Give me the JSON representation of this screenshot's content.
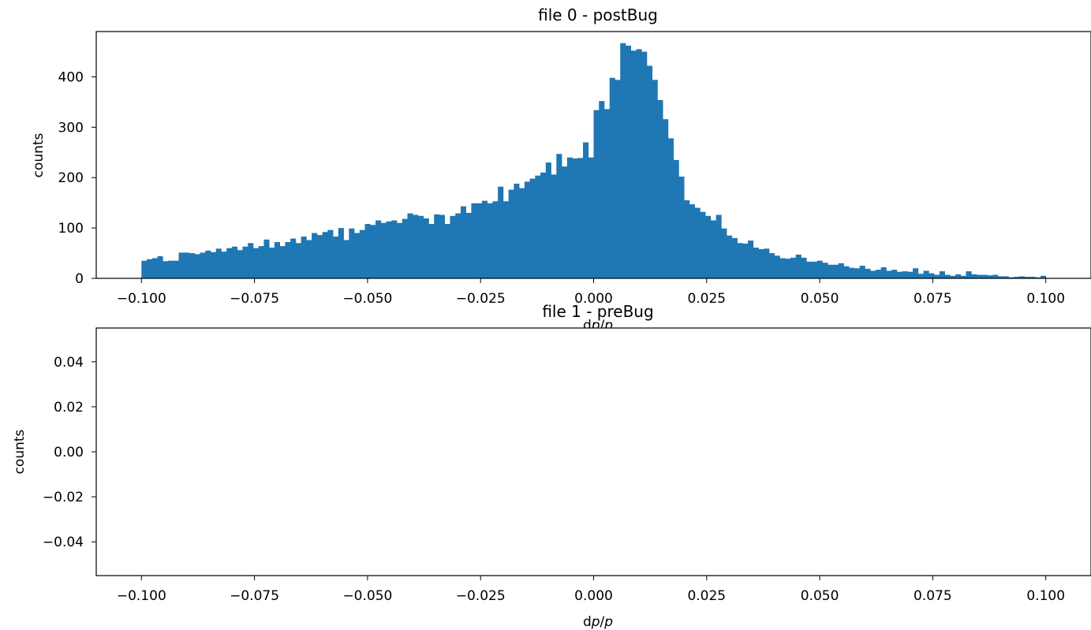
{
  "chart_data": [
    {
      "type": "bar",
      "title": "file 0 - postBug",
      "xlabel_parts": [
        "d",
        "p",
        "/",
        "p"
      ],
      "ylabel": "counts",
      "xlim": [
        -0.11,
        0.11
      ],
      "ylim": [
        0,
        490
      ],
      "xticks": [
        -0.1,
        -0.075,
        -0.05,
        -0.025,
        0.0,
        0.025,
        0.05,
        0.075,
        0.1
      ],
      "xtick_labels": [
        "−0.100",
        "−0.075",
        "−0.050",
        "−0.025",
        "0.000",
        "0.025",
        "0.050",
        "0.075",
        "0.100"
      ],
      "yticks": [
        0,
        100,
        200,
        300,
        400
      ],
      "ytick_labels": [
        "0",
        "100",
        "200",
        "300",
        "400"
      ],
      "bin_range": [
        -0.1,
        0.1
      ],
      "bin_count": 170,
      "bar_color": "#1f77b4",
      "values": [
        35,
        38,
        40,
        44,
        34,
        35,
        35,
        51,
        51,
        50,
        48,
        51,
        55,
        52,
        59,
        53,
        60,
        63,
        56,
        63,
        70,
        60,
        64,
        77,
        61,
        72,
        64,
        72,
        79,
        70,
        83,
        76,
        90,
        86,
        92,
        96,
        83,
        100,
        76,
        99,
        90,
        96,
        108,
        106,
        115,
        110,
        113,
        115,
        110,
        118,
        129,
        126,
        124,
        119,
        108,
        127,
        126,
        108,
        124,
        129,
        143,
        130,
        149,
        149,
        154,
        149,
        153,
        182,
        153,
        176,
        188,
        179,
        192,
        198,
        204,
        210,
        230,
        206,
        247,
        222,
        240,
        238,
        239,
        270,
        240,
        334,
        352,
        336,
        398,
        394,
        467,
        462,
        452,
        455,
        450,
        422,
        394,
        354,
        316,
        278,
        235,
        202,
        155,
        147,
        140,
        132,
        124,
        115,
        126,
        99,
        85,
        80,
        70,
        69,
        75,
        61,
        58,
        59,
        50,
        45,
        40,
        39,
        41,
        47,
        41,
        33,
        33,
        35,
        31,
        27,
        27,
        30,
        24,
        21,
        20,
        25,
        19,
        15,
        17,
        22,
        15,
        17,
        13,
        14,
        13,
        20,
        9,
        15,
        10,
        7,
        14,
        7,
        5,
        8,
        5,
        14,
        8,
        7,
        7,
        6,
        7,
        4,
        4,
        2,
        3,
        4,
        3,
        3,
        2,
        5
      ]
    },
    {
      "type": "bar",
      "title": "file 1 - preBug",
      "xlabel_parts": [
        "d",
        "p",
        "/",
        "p"
      ],
      "ylabel": "counts",
      "xlim": [
        -0.11,
        0.11
      ],
      "ylim": [
        -0.055,
        0.055
      ],
      "xticks": [
        -0.1,
        -0.075,
        -0.05,
        -0.025,
        0.0,
        0.025,
        0.05,
        0.075,
        0.1
      ],
      "xtick_labels": [
        "−0.100",
        "−0.075",
        "−0.050",
        "−0.025",
        "0.000",
        "0.025",
        "0.050",
        "0.075",
        "0.100"
      ],
      "yticks": [
        -0.04,
        -0.02,
        0.0,
        0.02,
        0.04
      ],
      "ytick_labels": [
        "−0.04",
        "−0.02",
        "0.00",
        "0.02",
        "0.04"
      ],
      "values": []
    }
  ]
}
